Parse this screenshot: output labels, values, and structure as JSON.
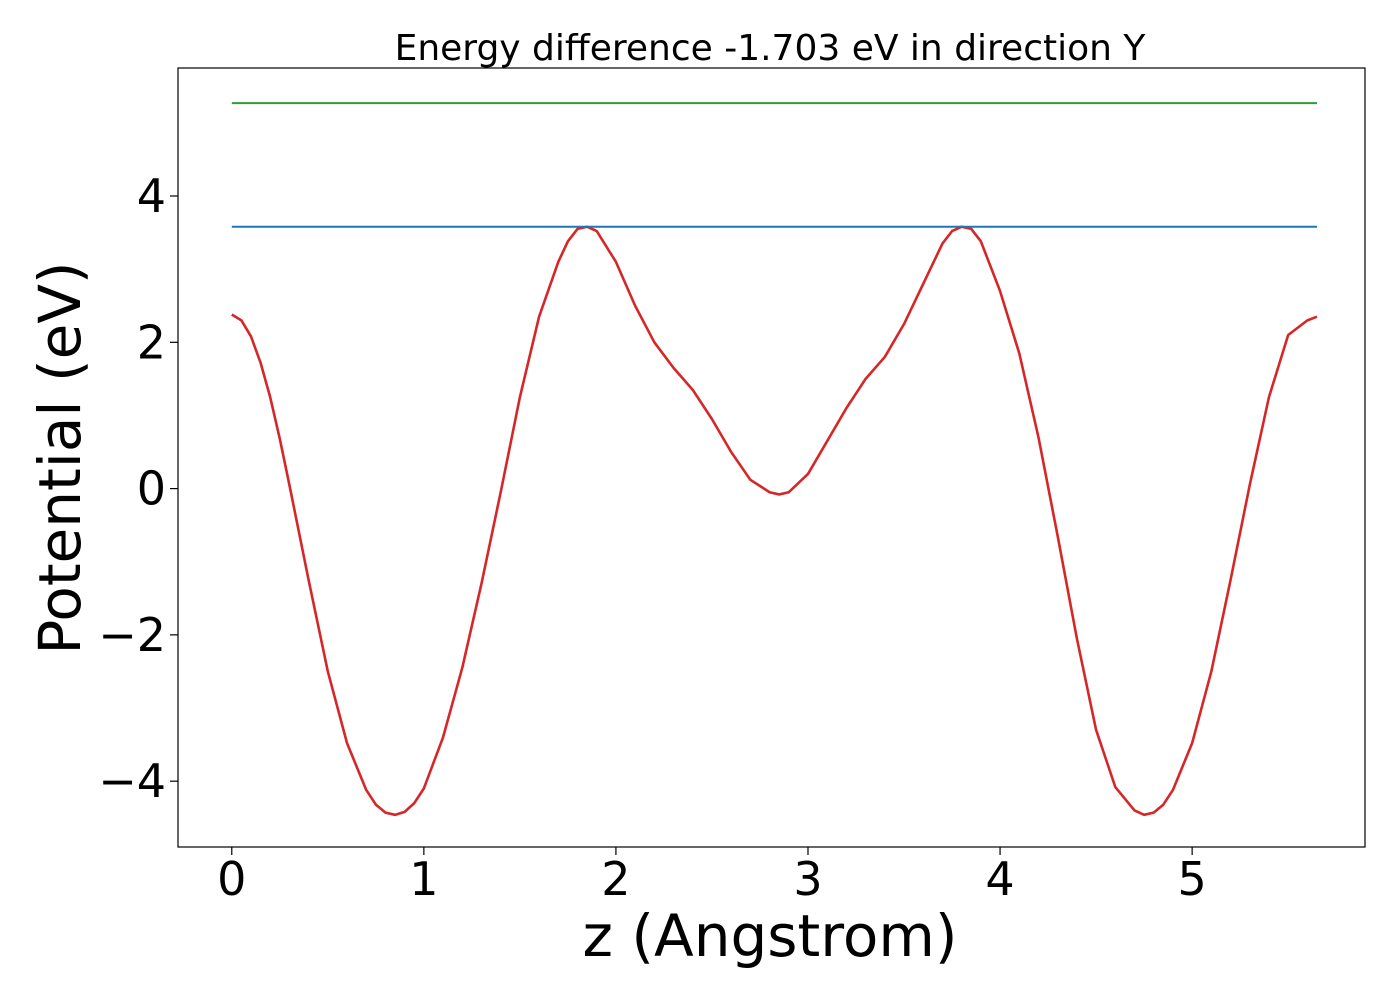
{
  "chart_data": {
    "type": "line",
    "title": "Energy difference -1.703 eV in direction Y",
    "xlabel": "z (Angstrom)",
    "ylabel": "Potential (eV)",
    "xlim": [
      -0.28,
      5.9
    ],
    "ylim": [
      -4.9,
      5.75
    ],
    "xticks": [
      0,
      1,
      2,
      3,
      4,
      5
    ],
    "xtick_labels": [
      "0",
      "1",
      "2",
      "3",
      "4",
      "5"
    ],
    "yticks": [
      -4,
      -2,
      0,
      2,
      4
    ],
    "ytick_labels": [
      "−4",
      "−2",
      "0",
      "2",
      "4"
    ],
    "grid": false,
    "legend": "none",
    "series": [
      {
        "color": "#d62728",
        "x": [
          0,
          0.05,
          0.1,
          0.15,
          0.2,
          0.25,
          0.3,
          0.4,
          0.5,
          0.6,
          0.7,
          0.75,
          0.8,
          0.85,
          0.9,
          0.95,
          1.0,
          1.1,
          1.2,
          1.3,
          1.4,
          1.5,
          1.6,
          1.7,
          1.75,
          1.8,
          1.85,
          1.9,
          2.0,
          2.1,
          2.2,
          2.3,
          2.4,
          2.5,
          2.6,
          2.7,
          2.8,
          2.85,
          2.9,
          3.0,
          3.1,
          3.2,
          3.3,
          3.4,
          3.5,
          3.6,
          3.7,
          3.75,
          3.8,
          3.85,
          3.9,
          4.0,
          4.1,
          4.2,
          4.3,
          4.4,
          4.5,
          4.6,
          4.7,
          4.75,
          4.8,
          4.85,
          4.9,
          5.0,
          5.1,
          5.2,
          5.3,
          5.4,
          5.5,
          5.6,
          5.65
        ],
        "y": [
          2.38,
          2.3,
          2.08,
          1.72,
          1.25,
          0.68,
          0.05,
          -1.25,
          -2.5,
          -3.48,
          -4.12,
          -4.32,
          -4.43,
          -4.46,
          -4.42,
          -4.3,
          -4.1,
          -3.4,
          -2.45,
          -1.3,
          -0.05,
          1.25,
          2.35,
          3.1,
          3.38,
          3.55,
          3.58,
          3.52,
          3.1,
          2.5,
          2.0,
          1.65,
          1.35,
          0.95,
          0.5,
          0.12,
          -0.05,
          -0.08,
          -0.05,
          0.2,
          0.65,
          1.1,
          1.5,
          1.8,
          2.25,
          2.8,
          3.35,
          3.52,
          3.58,
          3.55,
          3.38,
          2.7,
          1.85,
          0.7,
          -0.65,
          -2.05,
          -3.3,
          -4.08,
          -4.4,
          -4.46,
          -4.43,
          -4.32,
          -4.12,
          -3.48,
          -2.5,
          -1.25,
          0.05,
          1.25,
          2.1,
          2.3,
          2.35
        ]
      },
      {
        "color": "#1f77b4",
        "x": [
          0,
          5.65
        ],
        "y": [
          3.58,
          3.58
        ]
      },
      {
        "color": "#2ca02c",
        "x": [
          0,
          5.65
        ],
        "y": [
          5.27,
          5.27
        ]
      }
    ]
  }
}
